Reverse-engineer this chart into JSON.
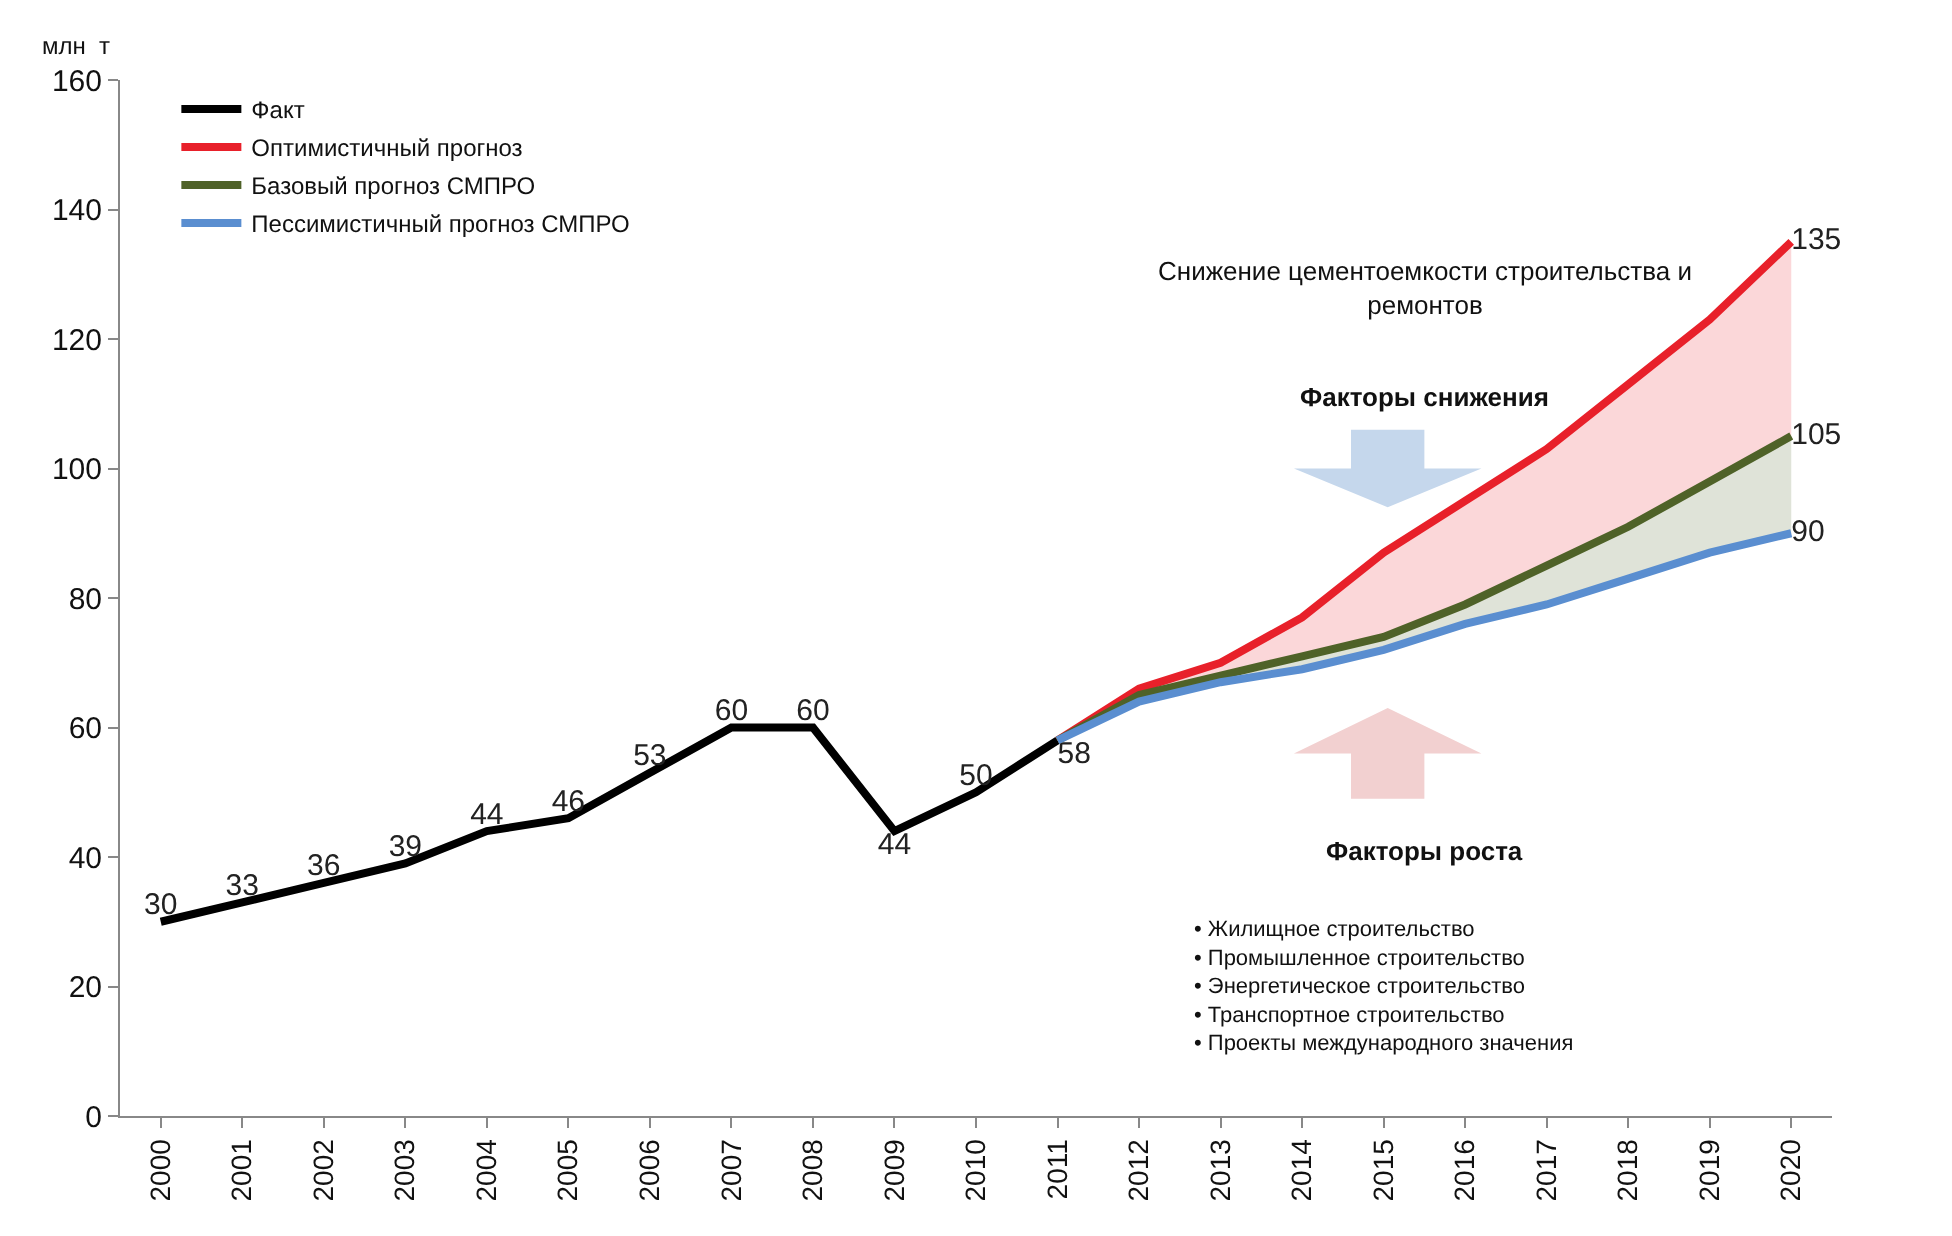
{
  "chart_data": {
    "type": "line",
    "ylabel": "млн  т",
    "categories": [
      "2000",
      "2001",
      "2002",
      "2003",
      "2004",
      "2005",
      "2006",
      "2007",
      "2008",
      "2009",
      "2010",
      "2011",
      "2012",
      "2013",
      "2014",
      "2015",
      "2016",
      "2017",
      "2018",
      "2019",
      "2020"
    ],
    "series": [
      {
        "name": "Факт",
        "color": "#000000",
        "values": [
          30,
          33,
          36,
          39,
          44,
          46,
          53,
          60,
          60,
          44,
          50,
          58,
          null,
          null,
          null,
          null,
          null,
          null,
          null,
          null,
          null
        ],
        "value_labels": [
          "30",
          "33",
          "36",
          "39",
          "44",
          "46",
          "53",
          "60",
          "60",
          "44",
          "50",
          "58",
          null,
          null,
          null,
          null,
          null,
          null,
          null,
          null,
          null
        ]
      },
      {
        "name": "Оптимистичный прогноз",
        "color": "#e8202a",
        "values": [
          null,
          null,
          null,
          null,
          null,
          null,
          null,
          null,
          null,
          null,
          null,
          58,
          66,
          70,
          77,
          87,
          95,
          103,
          113,
          123,
          135
        ],
        "value_labels": [
          null,
          null,
          null,
          null,
          null,
          null,
          null,
          null,
          null,
          null,
          null,
          null,
          null,
          null,
          null,
          null,
          null,
          null,
          null,
          null,
          "135"
        ]
      },
      {
        "name": "Базовый прогноз СМПРО",
        "color": "#4f6228",
        "values": [
          null,
          null,
          null,
          null,
          null,
          null,
          null,
          null,
          null,
          null,
          null,
          58,
          65,
          68,
          71,
          74,
          79,
          85,
          91,
          98,
          105
        ],
        "value_labels": [
          null,
          null,
          null,
          null,
          null,
          null,
          null,
          null,
          null,
          null,
          null,
          null,
          null,
          null,
          null,
          null,
          null,
          null,
          null,
          null,
          "105"
        ]
      },
      {
        "name": "Пессимистичный прогноз СМПРО",
        "color": "#5a8ed0",
        "values": [
          null,
          null,
          null,
          null,
          null,
          null,
          null,
          null,
          null,
          null,
          null,
          58,
          64,
          67,
          69,
          72,
          76,
          79,
          83,
          87,
          90
        ],
        "value_labels": [
          null,
          null,
          null,
          null,
          null,
          null,
          null,
          null,
          null,
          null,
          null,
          null,
          null,
          null,
          null,
          null,
          null,
          null,
          null,
          null,
          "90"
        ]
      }
    ],
    "ylim": [
      0,
      160
    ],
    "yticks": [
      0,
      20,
      40,
      60,
      80,
      100,
      120,
      140,
      160
    ],
    "grid": false,
    "legend": "top left",
    "marker": "none",
    "line_style": "solid",
    "annotations": [
      "Снижение цементоемкости строительства и ремонтов",
      "Факторы снижения",
      "Факторы роста",
      "• Жилищное строительство\n• Промышленное строительство\n• Энергетическое строительство\n• Транспортное строительство\n• Проекты международного значения"
    ]
  }
}
